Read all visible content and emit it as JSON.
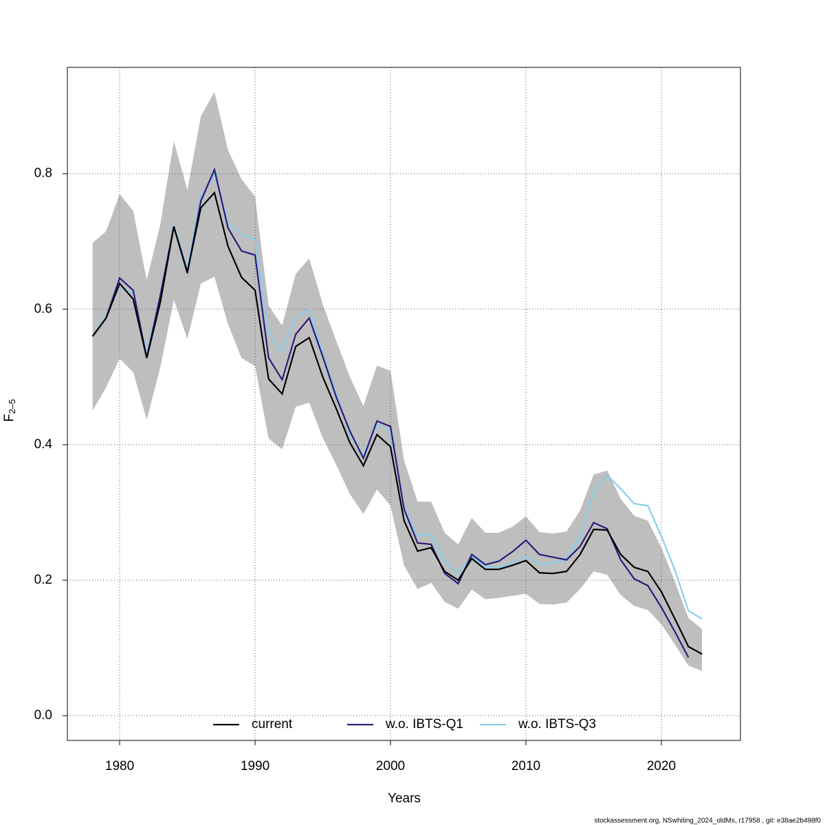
{
  "chart_data": {
    "type": "line",
    "x_label": "Years",
    "y_label": {
      "main": "F",
      "subscript": "2–5"
    },
    "footer": "stockassessment.org, NSwhiting_2024_oldMs, r17958 , git: e38ae2b498f0",
    "x": [
      1978,
      1979,
      1980,
      1981,
      1982,
      1983,
      1984,
      1985,
      1986,
      1987,
      1988,
      1989,
      1990,
      1991,
      1992,
      1993,
      1994,
      1995,
      1996,
      1997,
      1998,
      1999,
      2000,
      2001,
      2002,
      2003,
      2004,
      2005,
      2006,
      2007,
      2008,
      2009,
      2010,
      2011,
      2012,
      2013,
      2014,
      2015,
      2016,
      2017,
      2018,
      2019,
      2020,
      2021,
      2022,
      2023
    ],
    "xlim": [
      1976.14,
      2025.84
    ],
    "xticks": [
      1980,
      1990,
      2000,
      2010,
      2020
    ],
    "ylim": [
      -0.0365,
      0.957
    ],
    "yticks": [
      {
        "value": 0,
        "label": "0.0"
      },
      0.2,
      0.4,
      0.6,
      0.8
    ],
    "grid": true,
    "legend_position": "bottom",
    "band_color": "#bebebe",
    "series": [
      {
        "name": "current",
        "color": "#000000",
        "values": [
          0.56,
          0.587,
          0.638,
          0.615,
          0.528,
          0.61,
          0.722,
          0.655,
          0.75,
          0.772,
          0.693,
          0.647,
          0.628,
          0.497,
          0.475,
          0.545,
          0.558,
          0.5,
          0.453,
          0.403,
          0.369,
          0.415,
          0.397,
          0.288,
          0.243,
          0.248,
          0.213,
          0.2,
          0.232,
          0.216,
          0.216,
          0.222,
          0.229,
          0.211,
          0.21,
          0.213,
          0.238,
          0.275,
          0.274,
          0.238,
          0.219,
          0.213,
          0.183,
          0.143,
          0.102,
          0.091
        ],
        "ci_upper": [
          0.698,
          0.715,
          0.77,
          0.745,
          0.643,
          0.725,
          0.848,
          0.776,
          0.885,
          0.921,
          0.835,
          0.792,
          0.766,
          0.605,
          0.576,
          0.652,
          0.675,
          0.607,
          0.553,
          0.5,
          0.457,
          0.517,
          0.509,
          0.377,
          0.316,
          0.316,
          0.27,
          0.253,
          0.292,
          0.27,
          0.27,
          0.279,
          0.294,
          0.271,
          0.269,
          0.272,
          0.303,
          0.356,
          0.362,
          0.32,
          0.295,
          0.288,
          0.248,
          0.198,
          0.144,
          0.128
        ],
        "ci_lower": [
          0.45,
          0.485,
          0.527,
          0.507,
          0.437,
          0.514,
          0.614,
          0.556,
          0.638,
          0.648,
          0.578,
          0.528,
          0.516,
          0.409,
          0.393,
          0.456,
          0.462,
          0.41,
          0.37,
          0.327,
          0.298,
          0.334,
          0.31,
          0.222,
          0.187,
          0.196,
          0.168,
          0.158,
          0.186,
          0.172,
          0.174,
          0.177,
          0.18,
          0.165,
          0.164,
          0.167,
          0.187,
          0.213,
          0.208,
          0.178,
          0.162,
          0.156,
          0.135,
          0.105,
          0.074,
          0.066
        ]
      },
      {
        "name": "w.o. IBTS-Q1",
        "color": "#2a1a7a",
        "values": [
          0.56,
          0.587,
          0.646,
          0.628,
          0.528,
          0.62,
          0.722,
          0.653,
          0.76,
          0.806,
          0.72,
          0.686,
          0.68,
          0.528,
          0.496,
          0.563,
          0.587,
          0.53,
          0.47,
          0.42,
          0.38,
          0.435,
          0.427,
          0.305,
          0.255,
          0.253,
          0.21,
          0.195,
          0.238,
          0.223,
          0.228,
          0.242,
          0.259,
          0.238,
          0.234,
          0.23,
          0.25,
          0.285,
          0.276,
          0.23,
          0.202,
          0.192,
          0.16,
          0.124,
          0.086,
          null
        ]
      },
      {
        "name": "w.o. IBTS-Q3",
        "color": "#87ceeb",
        "values": [
          0.56,
          0.59,
          0.636,
          0.622,
          0.535,
          0.62,
          0.724,
          0.66,
          0.765,
          0.8,
          0.728,
          0.71,
          0.703,
          0.565,
          0.538,
          0.588,
          0.6,
          0.535,
          0.475,
          0.415,
          0.385,
          0.43,
          0.42,
          0.308,
          0.265,
          0.268,
          0.228,
          0.21,
          0.235,
          0.22,
          0.218,
          0.225,
          0.235,
          0.224,
          0.225,
          0.232,
          0.265,
          0.33,
          0.355,
          0.335,
          0.313,
          0.31,
          0.265,
          0.215,
          0.155,
          0.143
        ]
      }
    ]
  }
}
